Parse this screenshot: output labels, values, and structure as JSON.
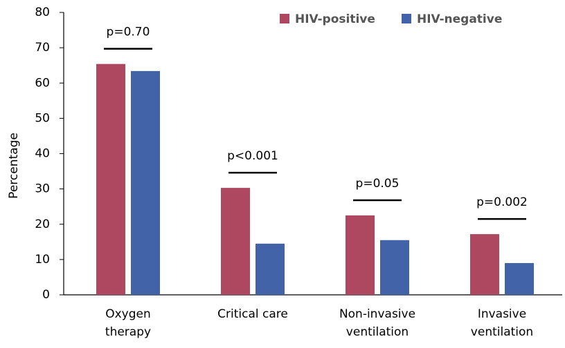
{
  "chart_data": {
    "type": "bar",
    "y_label": "Percentage",
    "categories": [
      "Oxygen\ntherapy",
      "Critical care",
      "Non-invasive\nventilation",
      "Invasive\nventilation"
    ],
    "annotations": [
      "p=0.70",
      "p<0.001",
      "p=0.05",
      "p=0.002"
    ],
    "series": [
      {
        "name": "HIV-positive",
        "color": "#ad4860",
        "values": [
          65.4,
          30.3,
          22.5,
          17.2
        ]
      },
      {
        "name": "HIV-negative",
        "color": "#4263a8",
        "values": [
          63.4,
          14.5,
          15.5,
          9.0
        ]
      }
    ],
    "ylim": [
      0,
      80
    ],
    "yticks": [
      0,
      10,
      20,
      30,
      40,
      50,
      60,
      70,
      80
    ],
    "grid": false,
    "legend": "top-right"
  }
}
